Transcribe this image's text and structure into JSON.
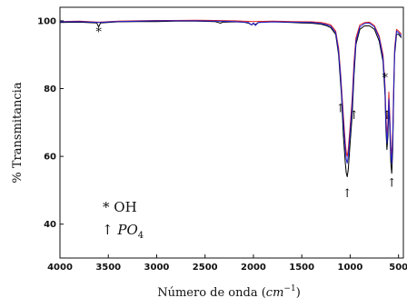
{
  "chart_data": {
    "type": "line",
    "xlabel_prefix": "Número de onda (",
    "xlabel_unit": "cm",
    "xlabel_exp": "−1",
    "xlabel_suffix": ")",
    "ylabel": "% Transmitancia",
    "xlim": [
      4000,
      450
    ],
    "ylim": [
      30,
      104
    ],
    "x_ticks": [
      4000,
      3500,
      3000,
      2500,
      2000,
      1500,
      1000,
      500
    ],
    "y_ticks": [
      40,
      60,
      80,
      100
    ],
    "grid": false,
    "legend": {
      "oh_symbol": "*",
      "oh_label": "OH",
      "po4_symbol": "↑",
      "po4_base": "PO",
      "po4_sub": "4"
    },
    "series": [
      {
        "color": "#000000",
        "x": [
          4000,
          3800,
          3620,
          3600,
          3580,
          3400,
          3200,
          3000,
          2800,
          2600,
          2400,
          2340,
          2320,
          2200,
          2100,
          2050,
          2020,
          2000,
          1980,
          1950,
          1900,
          1800,
          1700,
          1600,
          1500,
          1400,
          1300,
          1250,
          1200,
          1150,
          1120,
          1100,
          1090,
          1070,
          1050,
          1040,
          1030,
          1020,
          1000,
          980,
          960,
          940,
          900,
          850,
          800,
          750,
          700,
          660,
          640,
          630,
          620,
          610,
          600,
          590,
          580,
          570,
          560,
          550,
          540,
          520,
          500,
          470
        ],
        "y": [
          99.5,
          99.6,
          99.4,
          98.2,
          99.4,
          99.7,
          99.8,
          99.8,
          99.9,
          99.9,
          99.8,
          99.3,
          99.6,
          99.7,
          99.6,
          99.3,
          98.8,
          99.2,
          98.9,
          99.5,
          99.6,
          99.7,
          99.6,
          99.5,
          99.4,
          99.3,
          99.0,
          98.6,
          98.0,
          96.0,
          90.0,
          82.0,
          78.0,
          66.0,
          58.0,
          55.0,
          54.0,
          56.0,
          64.0,
          72.0,
          84.0,
          93.0,
          97.5,
          98.5,
          98.5,
          97.5,
          94.0,
          88.0,
          78.0,
          68.0,
          62.0,
          66.0,
          75.0,
          68.0,
          58.0,
          55.0,
          62.0,
          78.0,
          90.0,
          96.0,
          96.0,
          95.0
        ]
      },
      {
        "color": "#e02020",
        "x": [
          4000,
          3800,
          3600,
          3400,
          3200,
          3000,
          2800,
          2600,
          2400,
          2200,
          2000,
          1800,
          1600,
          1400,
          1300,
          1250,
          1200,
          1150,
          1120,
          1100,
          1070,
          1050,
          1040,
          1030,
          1020,
          1000,
          980,
          960,
          940,
          900,
          850,
          800,
          750,
          700,
          660,
          640,
          630,
          620,
          610,
          600,
          590,
          580,
          570,
          560,
          550,
          540,
          520,
          500,
          470
        ],
        "y": [
          99.8,
          99.9,
          99.6,
          99.9,
          100.0,
          100.1,
          100.1,
          100.2,
          100.1,
          100.0,
          99.8,
          99.9,
          99.8,
          99.7,
          99.5,
          99.2,
          98.8,
          97.0,
          92.0,
          85.0,
          72.0,
          64.0,
          61.0,
          60.0,
          62.0,
          69.0,
          77.0,
          88.0,
          95.0,
          98.8,
          99.5,
          99.6,
          98.6,
          95.5,
          90.0,
          81.0,
          72.0,
          66.0,
          70.0,
          79.0,
          72.0,
          63.0,
          60.0,
          67.0,
          82.0,
          92.0,
          97.5,
          97.0,
          96.0
        ]
      },
      {
        "color": "#2020d0",
        "x": [
          4000,
          3800,
          3600,
          3400,
          3200,
          3000,
          2800,
          2600,
          2400,
          2200,
          2050,
          2020,
          2000,
          1980,
          1950,
          1800,
          1600,
          1400,
          1300,
          1250,
          1200,
          1150,
          1120,
          1100,
          1070,
          1050,
          1040,
          1030,
          1020,
          1000,
          980,
          960,
          940,
          900,
          850,
          800,
          750,
          700,
          660,
          640,
          630,
          620,
          610,
          600,
          590,
          580,
          570,
          560,
          550,
          540,
          520,
          500,
          470
        ],
        "y": [
          99.7,
          99.8,
          99.5,
          99.8,
          99.9,
          100.0,
          100.0,
          100.0,
          99.9,
          99.8,
          99.5,
          98.8,
          99.4,
          98.6,
          99.5,
          99.7,
          99.6,
          99.5,
          99.2,
          98.9,
          98.4,
          96.5,
          91.0,
          84.0,
          70.0,
          62.0,
          59.0,
          58.0,
          60.0,
          67.0,
          75.0,
          86.0,
          94.0,
          98.2,
          99.2,
          99.3,
          98.2,
          95.0,
          89.0,
          80.0,
          70.0,
          64.0,
          68.0,
          77.0,
          70.0,
          61.0,
          58.0,
          65.0,
          80.0,
          91.0,
          97.0,
          96.5,
          95.5
        ]
      }
    ],
    "annotations": [
      {
        "symbol": "*",
        "x": 3600,
        "y": 95.5
      },
      {
        "symbol": "↑",
        "x": 1100,
        "y": 73
      },
      {
        "symbol": "↑",
        "x": 960,
        "y": 71
      },
      {
        "symbol": "↑",
        "x": 1030,
        "y": 48
      },
      {
        "symbol": "*",
        "x": 640,
        "y": 82
      },
      {
        "symbol": "↑",
        "x": 620,
        "y": 71
      },
      {
        "symbol": "↑",
        "x": 570,
        "y": 51
      }
    ]
  }
}
